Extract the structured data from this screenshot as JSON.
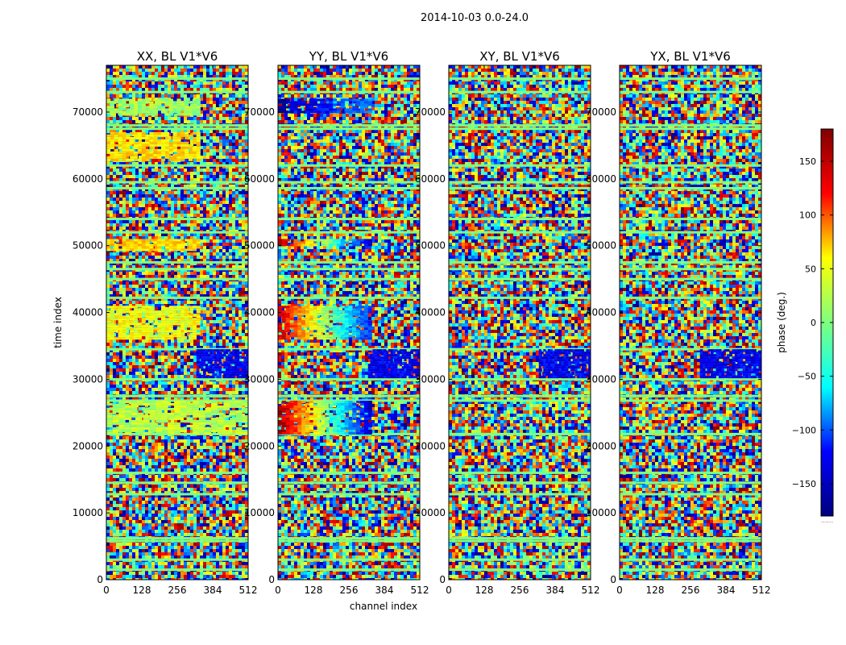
{
  "suptitle": "2014-10-03 0.0-24.0",
  "chart_data": [
    {
      "type": "heatmap",
      "title": "XX, BL V1*V6",
      "xlabel": "channel index",
      "ylabel": "time index",
      "xlim": [
        0,
        512
      ],
      "ylim": [
        0,
        77000
      ],
      "xticks": [
        0,
        128,
        256,
        384,
        512
      ],
      "yticks": [
        0,
        10000,
        20000,
        30000,
        40000,
        50000,
        60000,
        70000
      ],
      "ytick_labels": [
        "0",
        "10000",
        "20000",
        "30000",
        "40000",
        "50000",
        "60000",
        "70000"
      ],
      "coherent_features": [
        {
          "t0": 22000,
          "t1": 26800,
          "c0": 0,
          "c1": 512,
          "phase_deg": 20
        },
        {
          "t0": 36000,
          "t1": 41000,
          "c0": 0,
          "c1": 325,
          "phase_deg": 40
        },
        {
          "t0": 69500,
          "t1": 72000,
          "c0": 0,
          "c1": 325,
          "phase_deg": 10
        },
        {
          "t0": 63000,
          "t1": 67000,
          "c0": 0,
          "c1": 325,
          "phase_deg": 55
        },
        {
          "t0": 49500,
          "t1": 51000,
          "c0": 0,
          "c1": 325,
          "phase_deg": 60
        },
        {
          "t0": 30500,
          "t1": 34500,
          "c0": 325,
          "c1": 512,
          "phase_deg": -140
        }
      ]
    },
    {
      "type": "heatmap",
      "title": "YY, BL V1*V6",
      "xlabel": "",
      "ylabel": "",
      "xlim": [
        0,
        512
      ],
      "ylim": [
        0,
        77000
      ],
      "xticks": [
        0,
        128,
        256,
        384,
        512
      ],
      "yticks": [
        0,
        10000,
        20000,
        30000,
        40000,
        50000,
        60000,
        70000
      ],
      "ytick_labels": [
        "0",
        "10000",
        "20000",
        "30000",
        "40000",
        "50000",
        "60000",
        "70000"
      ],
      "coherent_features": [
        {
          "t0": 22000,
          "t1": 26800,
          "c0": 0,
          "c1": 325,
          "phase_deg": 170,
          "gradient_to_deg": -150
        },
        {
          "t0": 36000,
          "t1": 41000,
          "c0": 0,
          "c1": 325,
          "phase_deg": 150,
          "gradient_to_deg": -120
        },
        {
          "t0": 70000,
          "t1": 72000,
          "c0": 0,
          "c1": 325,
          "phase_deg": -170,
          "gradient_to_deg": -90
        },
        {
          "t0": 50000,
          "t1": 51000,
          "c0": 0,
          "c1": 325,
          "phase_deg": 160,
          "gradient_to_deg": -150
        },
        {
          "t0": 30500,
          "t1": 34500,
          "c0": 325,
          "c1": 512,
          "phase_deg": -140
        }
      ]
    },
    {
      "type": "heatmap",
      "title": "XY, BL V1*V6",
      "xlabel": "",
      "ylabel": "",
      "xlim": [
        0,
        512
      ],
      "ylim": [
        0,
        77000
      ],
      "xticks": [
        0,
        128,
        256,
        384,
        512
      ],
      "yticks": [
        0,
        10000,
        20000,
        30000,
        40000,
        50000,
        60000,
        70000
      ],
      "ytick_labels": [
        "0",
        "10000",
        "20000",
        "30000",
        "40000",
        "50000",
        "60000",
        "70000"
      ],
      "coherent_features": [
        {
          "t0": 30500,
          "t1": 34500,
          "c0": 325,
          "c1": 512,
          "phase_deg": -140
        }
      ]
    },
    {
      "type": "heatmap",
      "title": "YX, BL V1*V6",
      "xlabel": "",
      "ylabel": "",
      "xlim": [
        0,
        512
      ],
      "ylim": [
        0,
        77000
      ],
      "xticks": [
        0,
        128,
        256,
        384,
        512
      ],
      "yticks": [
        0,
        10000,
        20000,
        30000,
        40000,
        50000,
        60000,
        70000
      ],
      "ytick_labels": [
        "0",
        "10000",
        "20000",
        "30000",
        "40000",
        "50000",
        "60000",
        "70000"
      ],
      "coherent_features": [
        {
          "t0": 30500,
          "t1": 34500,
          "c0": 290,
          "c1": 512,
          "phase_deg": -140
        }
      ]
    }
  ],
  "colorbar": {
    "label": "phase (deg.)",
    "range": [
      -180,
      180
    ],
    "ticks": [
      150,
      100,
      50,
      0,
      -50,
      -100,
      -150
    ],
    "tick_labels": [
      "150",
      "100",
      "50",
      "0",
      "−50",
      "−100",
      "−150"
    ],
    "colormap": "jet",
    "colors": [
      "#00007f",
      "#0000ff",
      "#00ffff",
      "#7fff7f",
      "#ffff00",
      "#ff0000",
      "#7f0000"
    ],
    "bottom_marker": "......"
  },
  "flagged_rows": [
    1500,
    3000,
    5800,
    6200,
    12800,
    14500,
    16000,
    21800,
    26800,
    27500,
    30000,
    34500,
    42200,
    45000,
    46500,
    47500,
    52000,
    54000,
    58600,
    59500,
    62000,
    67500,
    68000,
    73000,
    75000
  ],
  "noise_level_color": "#7fff7f"
}
